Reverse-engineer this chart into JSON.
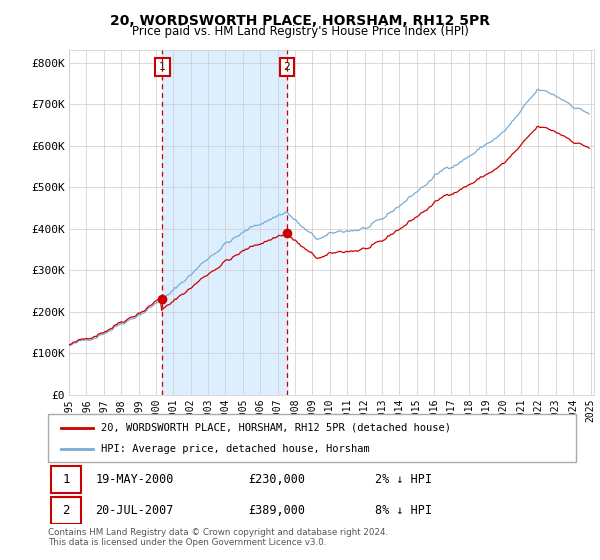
{
  "title": "20, WORDSWORTH PLACE, HORSHAM, RH12 5PR",
  "subtitle": "Price paid vs. HM Land Registry's House Price Index (HPI)",
  "ylabel_ticks": [
    "£0",
    "£100K",
    "£200K",
    "£300K",
    "£400K",
    "£500K",
    "£600K",
    "£700K",
    "£800K"
  ],
  "ytick_values": [
    0,
    100000,
    200000,
    300000,
    400000,
    500000,
    600000,
    700000,
    800000
  ],
  "ylim": [
    0,
    830000
  ],
  "sale1_year_float": 2000.37,
  "sale1_val": 230000,
  "sale2_year_float": 2007.54,
  "sale2_val": 389000,
  "sale1": {
    "date_label": "19-MAY-2000",
    "price": 230000,
    "hpi_diff": "2% ↓ HPI",
    "marker_num": "1"
  },
  "sale2": {
    "date_label": "20-JUL-2007",
    "price": 389000,
    "hpi_diff": "8% ↓ HPI",
    "marker_num": "2"
  },
  "legend_house": "20, WORDSWORTH PLACE, HORSHAM, RH12 5PR (detached house)",
  "legend_hpi": "HPI: Average price, detached house, Horsham",
  "footer": "Contains HM Land Registry data © Crown copyright and database right 2024.\nThis data is licensed under the Open Government Licence v3.0.",
  "line_color_house": "#cc0000",
  "line_color_hpi": "#7aadd4",
  "shade_color": "#ddeeff",
  "marker_box_color": "#cc0000",
  "background_color": "#ffffff",
  "grid_color": "#cccccc",
  "xlim_left": 1995.0,
  "xlim_right": 2025.2
}
